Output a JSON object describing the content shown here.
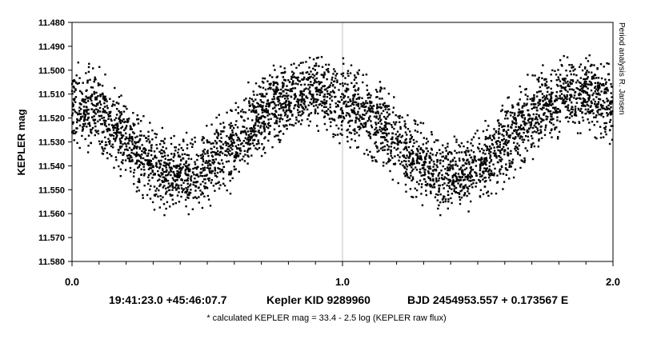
{
  "chart_data": {
    "type": "scatter",
    "title": "",
    "xlabel": "",
    "ylabel": "KEPLER mag",
    "x_axis": {
      "min": 0.0,
      "max": 2.0,
      "major_ticks": [
        0.0,
        1.0,
        2.0
      ],
      "labels": [
        "0.0",
        "1.0",
        "2.0"
      ],
      "minor_step": 0.1
    },
    "y_axis": {
      "min": 11.48,
      "max": 11.58,
      "inverted": true,
      "step": 0.01,
      "labels": [
        "11.480",
        "11.490",
        "11.500",
        "11.510",
        "11.520",
        "11.530",
        "11.540",
        "11.550",
        "11.560",
        "11.570",
        "11.580"
      ]
    },
    "grid": {
      "horizontal": false,
      "vertical_at_major": true
    },
    "marker_color": "#000000",
    "series": [
      {
        "phase": [
          0.0,
          0.05,
          0.1,
          0.15,
          0.2,
          0.25,
          0.3,
          0.35,
          0.4,
          0.45,
          0.5,
          0.55,
          0.6,
          0.65,
          0.7,
          0.75,
          0.8,
          0.85,
          0.9,
          0.95,
          1.0,
          1.05,
          1.1,
          1.15,
          1.2,
          1.25,
          1.3,
          1.35,
          1.4,
          1.45,
          1.5,
          1.55,
          1.6,
          1.65,
          1.7,
          1.75,
          1.8,
          1.85,
          1.9,
          1.95,
          2.0
        ],
        "mag_center": [
          11.514,
          11.516,
          11.519,
          11.524,
          11.53,
          11.536,
          11.54,
          11.543,
          11.544,
          11.543,
          11.54,
          11.536,
          11.531,
          11.525,
          11.519,
          11.514,
          11.511,
          11.509,
          11.509,
          11.511,
          11.514,
          11.516,
          11.519,
          11.524,
          11.53,
          11.536,
          11.54,
          11.543,
          11.544,
          11.543,
          11.54,
          11.536,
          11.531,
          11.525,
          11.519,
          11.514,
          11.511,
          11.509,
          11.509,
          11.511,
          11.514
        ],
        "mag_min": [
          11.494,
          11.494,
          11.497,
          11.505,
          11.512,
          11.518,
          11.522,
          11.524,
          11.526,
          11.525,
          11.521,
          11.516,
          11.511,
          11.505,
          11.5,
          11.496,
          11.494,
          11.494,
          11.493,
          11.493,
          11.494,
          11.494,
          11.497,
          11.505,
          11.512,
          11.518,
          11.522,
          11.524,
          11.526,
          11.525,
          11.521,
          11.516,
          11.511,
          11.505,
          11.5,
          11.496,
          11.494,
          11.494,
          11.493,
          11.493,
          11.494
        ],
        "mag_max": [
          11.532,
          11.534,
          11.538,
          11.546,
          11.552,
          11.556,
          11.56,
          11.561,
          11.562,
          11.56,
          11.559,
          11.557,
          11.552,
          11.545,
          11.538,
          11.532,
          11.529,
          11.527,
          11.527,
          11.529,
          11.532,
          11.534,
          11.538,
          11.546,
          11.552,
          11.556,
          11.56,
          11.561,
          11.562,
          11.56,
          11.559,
          11.557,
          11.552,
          11.545,
          11.538,
          11.532,
          11.529,
          11.527,
          11.527,
          11.529,
          11.532
        ],
        "approx_points": 4000
      }
    ]
  },
  "footer": {
    "coordinates": "19:41:23.0 +45:46:07.7",
    "object": "Kepler KID 9289960",
    "ephemeris": "BJD 2454953.557 + 0.173567 E"
  },
  "note": "* calculated KEPLER mag = 33.4 - 2.5 log (KEPLER raw flux)",
  "credit": "Period analysis R. Jansen"
}
